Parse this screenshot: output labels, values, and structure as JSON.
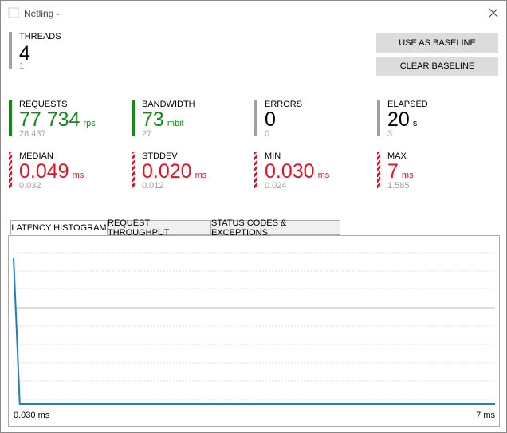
{
  "window": {
    "title": "Netling -"
  },
  "threads": {
    "label": "THREADS",
    "value": "4",
    "baseline": "1"
  },
  "buttons": [
    "USE AS BASELINE",
    "CLEAR BASELINE"
  ],
  "metrics": [
    {
      "label": "REQUESTS",
      "value": "77 734",
      "unit": "rps",
      "baseline": "28 437",
      "color": "#138a13"
    },
    {
      "label": "BANDWIDTH",
      "value": "73",
      "unit": "mbit",
      "baseline": "27",
      "color": "#138a13"
    },
    {
      "label": "ERRORS",
      "value": "0",
      "unit": null,
      "baseline": "0",
      "color": "#000000"
    },
    {
      "label": "ELAPSED",
      "value": "20",
      "unit": "s",
      "baseline": "3",
      "color": "#000000"
    },
    {
      "label": "MEDIAN",
      "value": "0.049",
      "unit": "ms",
      "baseline": "0.032",
      "color": "#e81123"
    },
    {
      "label": "STDDEV",
      "value": "0.020",
      "unit": "ms",
      "baseline": "0.012",
      "color": "#e81123"
    },
    {
      "label": "MIN",
      "value": "0.030",
      "unit": "ms",
      "baseline": "0.024",
      "color": "#e81123"
    },
    {
      "label": "MAX",
      "value": "7",
      "unit": "ms",
      "baseline": "1.585",
      "color": "#e81123"
    }
  ],
  "tabs": [
    "LATENCY HISTOGRAM",
    "REQUEST THROUGHPUT",
    "STATUS CODES & EXCEPTIONS"
  ],
  "chart_data": {
    "type": "line",
    "x": [
      0.03,
      0.12,
      7
    ],
    "values": [
      100,
      0,
      0
    ],
    "color": "#1c7fc4",
    "xlim": [
      0.03,
      7
    ],
    "xticks": [
      {
        "value": 0.03,
        "label": "0.030 ms"
      },
      {
        "value": 7,
        "label": "7 ms"
      }
    ]
  }
}
